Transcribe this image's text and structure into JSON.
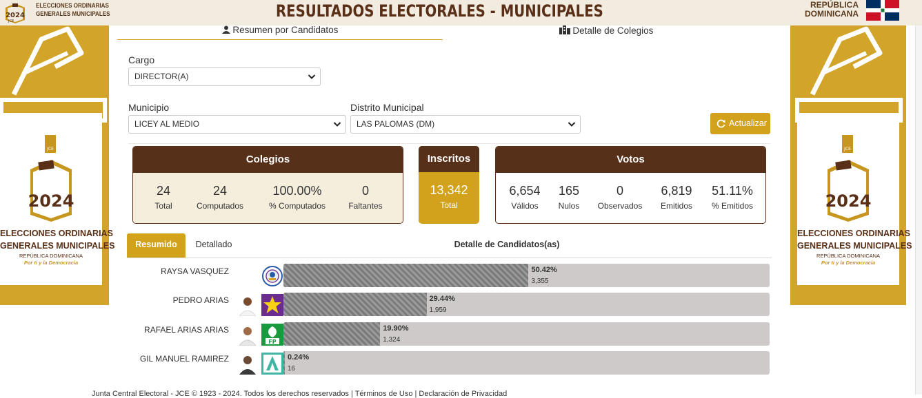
{
  "header": {
    "logo_line1": "ELECCIONES ORDINARIAS",
    "logo_line2": "GENERALES MUNICIPALES",
    "title": "RESULTADOS ELECTORALES - MUNICIPALES",
    "country_line1": "REPÚBLICA",
    "country_line2": "DOMINICANA",
    "logo_year": "2024",
    "logo_org": "JCE"
  },
  "sidebar": {
    "line1": "ELECCIONES ORDINARIAS",
    "line2": "GENERALES MUNICIPALES",
    "country": "REPÚBLICA DOMINICANA",
    "slogan": "Por ti y la Democracia",
    "year": "2024",
    "org": "JCE"
  },
  "top_tabs": {
    "summary": "Resumen por Candidatos",
    "detail": "Detalle de Colegios"
  },
  "filters": {
    "cargo_label": "Cargo",
    "cargo_value": "DIRECTOR(A)",
    "municipio_label": "Municipio",
    "municipio_value": "LICEY AL MEDIO",
    "distrito_label": "Distrito Municipal",
    "distrito_value": "LAS PALOMAS (DM)",
    "update_label": "Actualizar"
  },
  "colegios": {
    "title": "Colegios",
    "stats": [
      {
        "value": "24",
        "label": "Total"
      },
      {
        "value": "24",
        "label": "Computados"
      },
      {
        "value": "100.00%",
        "label": "% Computados"
      },
      {
        "value": "0",
        "label": "Faltantes"
      }
    ]
  },
  "inscritos": {
    "title": "Inscritos",
    "value": "13,342",
    "label": "Total"
  },
  "votos": {
    "title": "Votos",
    "stats": [
      {
        "value": "6,654",
        "label": "Válidos"
      },
      {
        "value": "165",
        "label": "Nulos"
      },
      {
        "value": "0",
        "label": "Observados"
      },
      {
        "value": "6,819",
        "label": "Emitidos"
      },
      {
        "value": "51.11%",
        "label": "% Emitidos"
      }
    ]
  },
  "results_tabs": {
    "resumido": "Resumido",
    "detallado": "Detallado",
    "heading": "Detalle de Candidatos(as)"
  },
  "candidates": [
    {
      "name": "RAYSA VASQUEZ",
      "pct": "50.42%",
      "pct_value": 50.42,
      "votes": "3,355",
      "party_icon": "pld-seal-icon",
      "party_color": "#ffffff",
      "has_photo": false
    },
    {
      "name": "PEDRO ARIAS",
      "pct": "29.44%",
      "pct_value": 29.44,
      "votes": "1,959",
      "party_icon": "star-icon",
      "party_color": "#6a2c91",
      "has_photo": true
    },
    {
      "name": "RAFAEL ARIAS ARIAS",
      "pct": "19.90%",
      "pct_value": 19.9,
      "votes": "1,324",
      "party_icon": "fp-leaf-icon",
      "party_color": "#1a9a3e",
      "has_photo": true
    },
    {
      "name": "GIL MANUEL RAMIREZ",
      "pct": "0.24%",
      "pct_value": 0.24,
      "votes": "16",
      "party_icon": "letter-a-icon",
      "party_color": "#3fb6a4",
      "has_photo": true
    }
  ],
  "footer": {
    "text": "Junta Central Electoral - JCE © 1923 - 2024. Todos los derechos reservados | Términos de Uso | Declaración de Privacidad"
  },
  "colors": {
    "brown": "#57301a",
    "gold": "#d3a21c"
  }
}
